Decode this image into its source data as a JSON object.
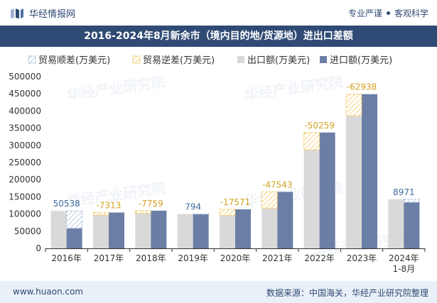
{
  "header": {
    "brand": "华经情报网",
    "tag1": "专业严谨",
    "tag2": "客观科学"
  },
  "title": "2016-2024年8月新余市（境内目的地/货源地）进出口差额",
  "footer": {
    "website": "www.huaon.com",
    "source": "数据来源：中国海关，华经产业研究院整理"
  },
  "watermark": "华经产业研究院",
  "colors": {
    "export": "#d9d9d9",
    "import": "#6a7ea6",
    "surplus_stroke": "#a3b8d6",
    "deficit_stroke": "#f2c14e",
    "header": "#2f4a74",
    "label_surplus": "#3c6c9c",
    "label_deficit": "#d4a020"
  },
  "chart_data": {
    "type": "bar",
    "legend_position": "top",
    "categories": [
      "2016年",
      "2017年",
      "2018年",
      "2019年",
      "2020年",
      "2021年",
      "2022年",
      "2023年",
      "2024年\n1-8月"
    ],
    "ylim": [
      0,
      500000
    ],
    "yticks": [
      "0",
      "50000",
      "100000",
      "150000",
      "200000",
      "250000",
      "300000",
      "350000",
      "400000",
      "450000",
      "500000"
    ],
    "series": [
      {
        "name": "贸易顺差(万美元)",
        "kind": "surplus"
      },
      {
        "name": "贸易逆差(万美元)",
        "kind": "deficit"
      },
      {
        "name": "出口额(万美元)",
        "kind": "export",
        "values": [
          109000,
          97000,
          102000,
          100000,
          96000,
          117000,
          287000,
          386000,
          143000
        ]
      },
      {
        "name": "进口额(万美元)",
        "kind": "import",
        "values": [
          58462,
          104313,
          109759,
          99206,
          113571,
          164543,
          337259,
          448938,
          134029
        ]
      }
    ],
    "balance": [
      50538,
      -7313,
      -7759,
      794,
      -17571,
      -47543,
      -50259,
      -62938,
      8971
    ],
    "balance_labels": [
      "50538",
      "-7313",
      "-7759",
      "794",
      "-17571",
      "-47543",
      "-50259",
      "-62938",
      "8971"
    ]
  }
}
